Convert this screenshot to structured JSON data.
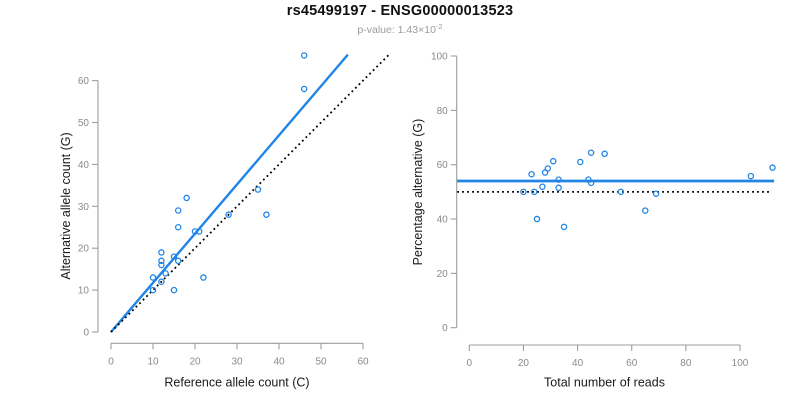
{
  "title": "rs45499197 - ENSG00000013523",
  "subtitle": {
    "text": "p-value: 1.43×10",
    "exponent": "-2"
  },
  "colors": {
    "accent_blue": "#2185e6",
    "line_black": "#000000",
    "axis_gray": "#9e9e9e",
    "tick_label_gray": "#8a8a8a",
    "axis_title_dark": "#1a1a1a",
    "subtitle_gray": "#9b9b9b",
    "background": "#ffffff"
  },
  "chart_data": [
    {
      "type": "scatter",
      "panel": "left",
      "xlabel": "Reference allele count (C)",
      "ylabel": "Alternative allele count (G)",
      "xticks": [
        0,
        10,
        20,
        30,
        40,
        50,
        60
      ],
      "yticks": [
        0,
        10,
        20,
        30,
        40,
        50,
        60
      ],
      "xlim": [
        0,
        66.5
      ],
      "ylim": [
        0,
        68.5
      ],
      "grid": false,
      "points": [
        [
          10,
          10
        ],
        [
          10,
          13
        ],
        [
          12,
          12
        ],
        [
          12,
          16
        ],
        [
          12,
          17
        ],
        [
          12,
          19
        ],
        [
          13,
          14
        ],
        [
          15,
          10
        ],
        [
          15,
          18
        ],
        [
          16,
          17
        ],
        [
          16,
          25
        ],
        [
          16,
          29
        ],
        [
          18,
          32
        ],
        [
          20,
          24
        ],
        [
          21,
          24
        ],
        [
          22,
          13
        ],
        [
          28,
          28
        ],
        [
          35,
          34
        ],
        [
          37,
          28
        ],
        [
          46,
          58
        ],
        [
          46,
          66
        ]
      ],
      "lines": [
        {
          "name": "regression-line",
          "color": "blue",
          "style": "solid",
          "x1": 0,
          "y1": 0,
          "x2": 56.4,
          "y2": 66.2
        },
        {
          "name": "identity-line",
          "color": "black",
          "style": "dotted",
          "x1": 0,
          "y1": 0,
          "x2": 66.3,
          "y2": 66.3
        }
      ]
    },
    {
      "type": "scatter",
      "panel": "right",
      "xlabel": "Total number of reads",
      "ylabel": "Percentage alternative (G)",
      "xticks": [
        0,
        20,
        40,
        60,
        80,
        100
      ],
      "yticks": [
        0,
        20,
        40,
        60,
        80,
        100
      ],
      "xlim": [
        -4.5,
        112.7
      ],
      "ylim": [
        0,
        100
      ],
      "grid": false,
      "points": [
        [
          20,
          50
        ],
        [
          23,
          56.5
        ],
        [
          24,
          50
        ],
        [
          25,
          40
        ],
        [
          27,
          51.9
        ],
        [
          28,
          57.1
        ],
        [
          29,
          58.6
        ],
        [
          31,
          61.3
        ],
        [
          33,
          51.5
        ],
        [
          33,
          54.5
        ],
        [
          35,
          37.1
        ],
        [
          41,
          61
        ],
        [
          44,
          54.5
        ],
        [
          45,
          53.3
        ],
        [
          45,
          64.4
        ],
        [
          50,
          64
        ],
        [
          56,
          50
        ],
        [
          65,
          43.1
        ],
        [
          69,
          49.3
        ],
        [
          104,
          55.8
        ],
        [
          112,
          58.9
        ]
      ],
      "lines": [
        {
          "name": "mean-percentage-line",
          "color": "blue",
          "style": "solid",
          "x1": -4.5,
          "y1": 54,
          "x2": 112.6,
          "y2": 54
        },
        {
          "name": "fifty-percent-line",
          "color": "black",
          "style": "dotted",
          "x1": -4.5,
          "y1": 50,
          "x2": 111,
          "y2": 50
        }
      ]
    }
  ]
}
